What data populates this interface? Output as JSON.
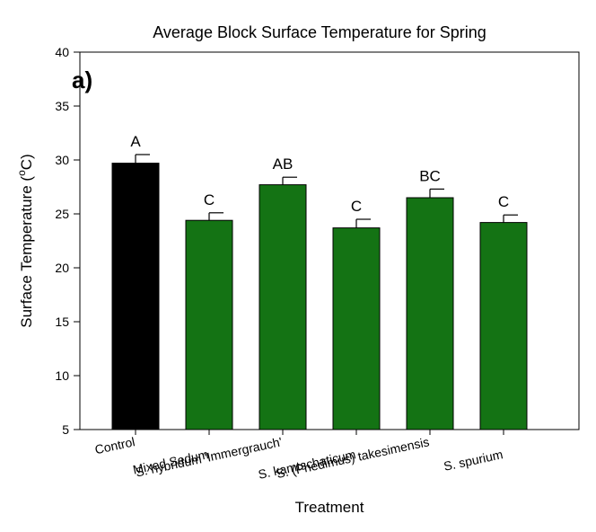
{
  "chart_data": {
    "type": "bar",
    "title": "Average Block Surface Temperature for Spring",
    "panel_label": "a)",
    "xlabel": "Treatment",
    "ylabel_main": "Surface Temperature (",
    "ylabel_sup": "o",
    "ylabel_end": "C)",
    "ylim": [
      5,
      40
    ],
    "yticks": [
      5,
      10,
      15,
      20,
      25,
      30,
      35,
      40
    ],
    "grid": false,
    "categories": [
      "Control",
      "Mixed Sedum",
      "S. hybridum 'Immergrauch'",
      "S. kamtschaticum",
      "S. (Phedimus) takesimensis",
      "S. spurium"
    ],
    "values": [
      29.7,
      24.4,
      27.7,
      23.7,
      26.5,
      24.2
    ],
    "error": [
      0.8,
      0.7,
      0.7,
      0.8,
      0.8,
      0.7
    ],
    "significance_letters": [
      "A",
      "C",
      "AB",
      "C",
      "BC",
      "C"
    ],
    "colors": [
      "#000000",
      "#147314",
      "#147314",
      "#147314",
      "#147314",
      "#147314"
    ]
  }
}
